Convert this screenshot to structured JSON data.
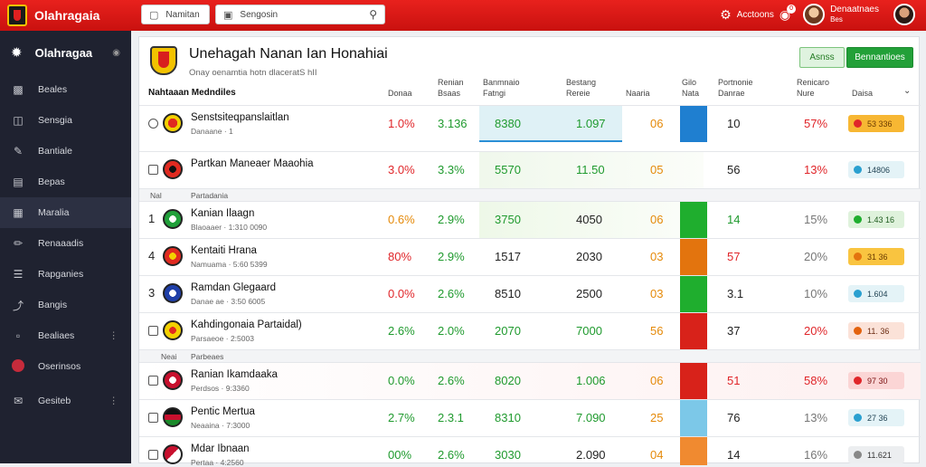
{
  "brand": {
    "name": "Olahragaia"
  },
  "topbar": {
    "field1": "Namitan",
    "search_placeholder": "Sengosin",
    "account_label": "Acctoons",
    "notif_count": "0",
    "user_name_line1": "Denaatnaes",
    "user_name_line2": "Bes"
  },
  "sidebar": {
    "title": "Olahragaa",
    "items": [
      {
        "label": "Beales",
        "icon": "monitor-icon"
      },
      {
        "label": "Sensgia",
        "icon": "folder-icon"
      },
      {
        "label": "Bantiale",
        "icon": "link-icon"
      },
      {
        "label": "Bepas",
        "icon": "calendar-icon"
      },
      {
        "label": "Maralia",
        "icon": "table-icon",
        "active": true
      },
      {
        "label": "Renaaadis",
        "icon": "pen-icon"
      },
      {
        "label": "Rapganies",
        "icon": "list-icon"
      },
      {
        "label": "Bangis",
        "icon": "share-icon"
      },
      {
        "label": "Bealiaes",
        "icon": "chat-icon",
        "more": true
      },
      {
        "label": "Oserinsos",
        "icon": "avatar-icon"
      },
      {
        "label": "Gesiteb",
        "icon": "mail-icon",
        "more": true
      }
    ]
  },
  "panel": {
    "title": "Unehagah Nanan Ian Honahiai",
    "subtitle": "Onay oenamtia hotn dlaceratS  hII",
    "btn_light": "Asnss",
    "btn_dark": "Bennantioes",
    "columns": {
      "name": "Nahtaaan Medndiles",
      "c1": "Donaa",
      "c2a": "Renian",
      "c2b": "Bsaas",
      "c3a": "Banmnaio",
      "c3b": "Fatngi",
      "c4a": "Bestang",
      "c4b": "Rereie",
      "c5": "Naaria",
      "c6a": "Gilo",
      "c6b": "Nata",
      "c7a": "Portnonie",
      "c7b": "Danrae",
      "c8a": "Renicaro",
      "c8b": "Nure",
      "c9": "Daisa"
    },
    "sep1": {
      "left": "Nal",
      "right": "Partadania"
    },
    "sep2": {
      "left": "Neai",
      "right": "Parbeaes"
    }
  },
  "rows": [
    {
      "marker": "",
      "name": "Senstsiteqpanslaitlan",
      "meta": "Danaane  ·  1",
      "c1": "1.0%",
      "c2": "3.136",
      "c3": "8380",
      "c4": "1.097",
      "c5": "06",
      "c7": "10",
      "c8": "57%",
      "badge": "53 336"
    },
    {
      "marker": "",
      "name": "Partkan Maneaer Maaohia",
      "meta": "",
      "c1": "3.0%",
      "c2": "3.3%",
      "c3": "5570",
      "c4": "11.50",
      "c5": "05",
      "c7": "56",
      "c8": "13%",
      "badge": "14806"
    },
    {
      "marker": "1",
      "name": "Kanian Ilaagn",
      "meta": "Blaoaaer  ·  1:310 0090",
      "c1": "0.6%",
      "c2": "2.9%",
      "c3": "3750",
      "c4": "4050",
      "c5": "06",
      "c7": "14",
      "c8": "15%",
      "badge": "1.43 16"
    },
    {
      "marker": "4",
      "name": "Kentaiti Hrana",
      "meta": "Namuama  ·  5:60 5399",
      "c1": "80%",
      "c2": "2.9%",
      "c3": "1517",
      "c4": "2030",
      "c5": "03",
      "c7": "57",
      "c8": "20%",
      "badge": "31 36"
    },
    {
      "marker": "3",
      "name": "Ramdan Glegaard",
      "meta": "Danae ae  ·  3:50 6005",
      "c1": "0.0%",
      "c2": "2.6%",
      "c3": "8510",
      "c4": "2500",
      "c5": "03",
      "c7": "3.1",
      "c8": "10%",
      "badge": "1.604"
    },
    {
      "marker": "",
      "name": "Kahdingonaia Partaidal)",
      "meta": "Parsaeoe  ·  2:5003",
      "c1": "2.6%",
      "c2": "2.0%",
      "c3": "2070",
      "c4": "7000",
      "c5": "56",
      "c7": "37",
      "c8": "20%",
      "badge": "11. 36"
    },
    {
      "marker": "",
      "name": "Ranian Ikamdaaka",
      "meta": "Perdsos  ·  9:3360",
      "c1": "0.0%",
      "c2": "2.6%",
      "c3": "8020",
      "c4": "1.006",
      "c5": "06",
      "c7": "51",
      "c8": "58%",
      "badge": "97 30"
    },
    {
      "marker": "",
      "name": "Pentic Mertua",
      "meta": "Neaaina  ·  7:3000",
      "c1": "2.7%",
      "c2": "2.3.1",
      "c3": "8310",
      "c4": "7.090",
      "c5": "25",
      "c7": "76",
      "c8": "13%",
      "badge": "27 36"
    },
    {
      "marker": "",
      "name": "Mdar Ibnaan",
      "meta": "Pertaa  ·  4:2560",
      "c1": "00%",
      "c2": "2.6%",
      "c3": "3030",
      "c4": "2.090",
      "c5": "04",
      "c7": "14",
      "c8": "16%",
      "badge": "11.621"
    }
  ]
}
